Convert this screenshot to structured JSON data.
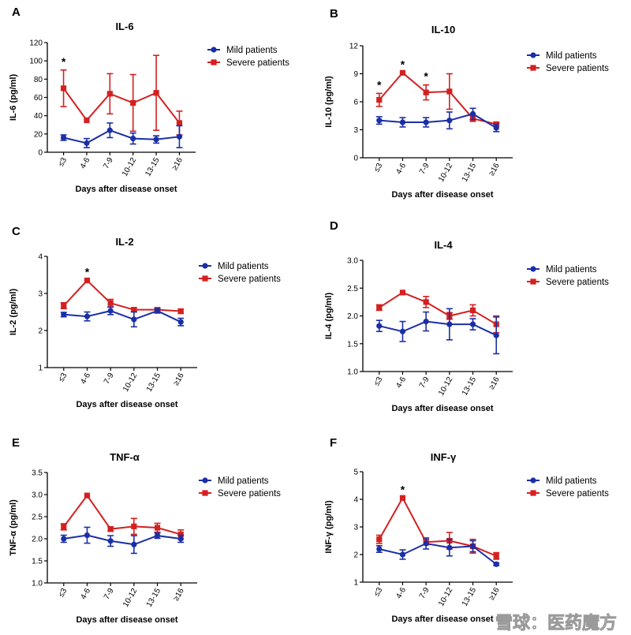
{
  "x_axis_title": "Days after disease onset",
  "legend": {
    "mild": "Mild patients",
    "severe": "Severe patients"
  },
  "colors": {
    "mild": "#1a2fa6",
    "severe": "#d42020"
  },
  "watermark": "雪球：医药魔方",
  "chart_data": [
    {
      "panel": "A",
      "type": "line",
      "title": "IL-6",
      "ylabel": "IL-6 (pg/ml)",
      "ylim": [
        0,
        120
      ],
      "yticks": [
        "0",
        "20",
        "40",
        "60",
        "80",
        "100",
        "120"
      ],
      "categories": [
        "≤3",
        "4-6",
        "7-9",
        "10-12",
        "13-15",
        "≥16"
      ],
      "series": [
        {
          "name": "Mild patients",
          "values": [
            16,
            10,
            24,
            15,
            14,
            17
          ],
          "error": [
            3,
            5,
            8,
            6,
            4,
            12
          ]
        },
        {
          "name": "Severe patients",
          "values": [
            70,
            35,
            64,
            54,
            65,
            32
          ],
          "error": [
            20,
            0,
            22,
            31,
            41,
            13
          ]
        }
      ],
      "annotations": [
        {
          "label": "*",
          "category": "≤3"
        }
      ]
    },
    {
      "panel": "B",
      "type": "line",
      "title": "IL-10",
      "ylabel": "IL-10 (pg/ml)",
      "ylim": [
        0,
        12
      ],
      "yticks": [
        "0",
        "3",
        "6",
        "9",
        "12"
      ],
      "categories": [
        "≤3",
        "4-6",
        "7-9",
        "10-12",
        "13-15",
        "≥16"
      ],
      "series": [
        {
          "name": "Mild patients",
          "values": [
            4.0,
            3.8,
            3.8,
            4.0,
            4.7,
            3.2
          ],
          "error": [
            0.4,
            0.5,
            0.5,
            0.9,
            0.6,
            0.4
          ]
        },
        {
          "name": "Severe patients",
          "values": [
            6.2,
            9.1,
            7.0,
            7.1,
            4.2,
            3.6
          ],
          "error": [
            0.7,
            0,
            0.8,
            1.9,
            0.3,
            0.2
          ]
        }
      ],
      "annotations": [
        {
          "label": "*",
          "category": "≤3"
        },
        {
          "label": "*",
          "category": "4-6"
        },
        {
          "label": "*",
          "category": "7-9"
        }
      ]
    },
    {
      "panel": "C",
      "type": "line",
      "title": "IL-2",
      "ylabel": "IL-2 (pg/ml)",
      "ylim": [
        1,
        4
      ],
      "yticks": [
        "1",
        "2",
        "3",
        "4"
      ],
      "categories": [
        "≤3",
        "4-6",
        "7-9",
        "10-12",
        "13-15",
        "≥16"
      ],
      "series": [
        {
          "name": "Mild patients",
          "values": [
            2.43,
            2.38,
            2.53,
            2.3,
            2.53,
            2.23
          ],
          "error": [
            0.06,
            0.12,
            0.1,
            0.2,
            0.06,
            0.1
          ]
        },
        {
          "name": "Severe patients",
          "values": [
            2.67,
            3.35,
            2.74,
            2.56,
            2.56,
            2.52
          ],
          "error": [
            0.08,
            0,
            0.1,
            0.05,
            0.05,
            0.06
          ]
        }
      ],
      "annotations": [
        {
          "label": "*",
          "category": "4-6"
        }
      ]
    },
    {
      "panel": "D",
      "type": "line",
      "title": "IL-4",
      "ylabel": "IL-4 (pg/ml)",
      "ylim": [
        1.0,
        3.0
      ],
      "yticks": [
        "1.0",
        "1.5",
        "2.0",
        "2.5",
        "3.0"
      ],
      "categories": [
        "≤3",
        "4-6",
        "7-9",
        "10-12",
        "13-15",
        "≥16"
      ],
      "series": [
        {
          "name": "Mild patients",
          "values": [
            1.82,
            1.72,
            1.9,
            1.85,
            1.85,
            1.65
          ],
          "error": [
            0.1,
            0.18,
            0.17,
            0.28,
            0.1,
            0.33
          ]
        },
        {
          "name": "Severe patients",
          "values": [
            2.15,
            2.42,
            2.25,
            2.0,
            2.1,
            1.85
          ],
          "error": [
            0.05,
            0,
            0.1,
            0.06,
            0.1,
            0.15
          ]
        }
      ],
      "annotations": []
    },
    {
      "panel": "E",
      "type": "line",
      "title": "TNF-α",
      "ylabel": "TNF-α (pg/ml)",
      "ylim": [
        1.0,
        3.5
      ],
      "yticks": [
        "1.0",
        "1.5",
        "2.0",
        "2.5",
        "3.0",
        "3.5"
      ],
      "categories": [
        "≤3",
        "4-6",
        "7-9",
        "10-12",
        "13-15",
        "≥16"
      ],
      "series": [
        {
          "name": "Mild patients",
          "values": [
            2.0,
            2.08,
            1.95,
            1.87,
            2.07,
            2.0
          ],
          "error": [
            0.08,
            0.18,
            0.12,
            0.2,
            0.06,
            0.08
          ]
        },
        {
          "name": "Severe patients",
          "values": [
            2.27,
            2.98,
            2.22,
            2.28,
            2.25,
            2.1
          ],
          "error": [
            0.07,
            0,
            0.05,
            0.18,
            0.1,
            0.1
          ]
        }
      ],
      "annotations": []
    },
    {
      "panel": "F",
      "type": "line",
      "title": "INF-γ",
      "ylabel": "INF-γ (pg/ml)",
      "ylim": [
        1,
        5
      ],
      "yticks": [
        "1",
        "2",
        "3",
        "4",
        "5"
      ],
      "categories": [
        "≤3",
        "4-6",
        "7-9",
        "10-12",
        "13-15",
        "≥16"
      ],
      "series": [
        {
          "name": "Mild patients",
          "values": [
            2.2,
            2.0,
            2.4,
            2.25,
            2.3,
            1.65
          ],
          "error": [
            0.12,
            0.17,
            0.2,
            0.3,
            0.2,
            0.05
          ]
        },
        {
          "name": "Severe patients",
          "values": [
            2.55,
            4.05,
            2.45,
            2.5,
            2.3,
            1.95
          ],
          "error": [
            0.15,
            0,
            0.1,
            0.3,
            0.25,
            0.12
          ]
        }
      ],
      "annotations": [
        {
          "label": "*",
          "category": "4-6"
        }
      ]
    }
  ]
}
